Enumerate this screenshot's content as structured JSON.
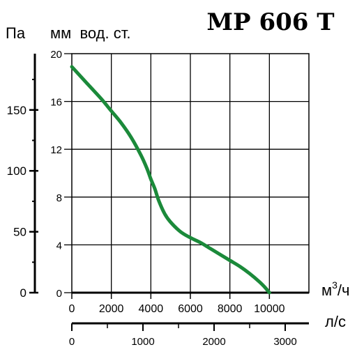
{
  "chart_data": {
    "type": "line",
    "title": "MP 606 T",
    "left_axis_label": "Па",
    "ylabel": "мм  вод. ст.",
    "xlabel": "м³/ч",
    "xlabel_base": "м",
    "xlabel_sup": "3",
    "xlabel_tail": "/ч",
    "x2label": "л/с",
    "xlim": [
      0,
      12000
    ],
    "ylim": [
      0,
      20
    ],
    "x_ticks": [
      "0",
      "2000",
      "4000",
      "6000",
      "8000",
      "10000"
    ],
    "y_ticks": [
      "0",
      "4",
      "8",
      "12",
      "16",
      "20"
    ],
    "left_ticks": [
      "0",
      "50",
      "100",
      "150"
    ],
    "left_tick_values": [
      0,
      50,
      100,
      150
    ],
    "x2_ticks": [
      "0",
      "1000",
      "2000",
      "3000"
    ],
    "x2_tick_values": [
      0,
      1000,
      2000,
      3000
    ],
    "grid": true,
    "series_color": "#1b8a3a",
    "series": [
      {
        "x": [
          0,
          500,
          1000,
          1500,
          2000,
          2500,
          3000,
          3500,
          3800,
          4000,
          4200,
          4400,
          4700,
          5000,
          5500,
          6000,
          6500,
          7000,
          7500,
          8000,
          8500,
          9000,
          9500,
          9800,
          10000
        ],
        "y": [
          18.9,
          18.0,
          17.1,
          16.2,
          15.2,
          14.2,
          13.0,
          11.5,
          10.4,
          9.5,
          8.7,
          7.7,
          6.6,
          5.9,
          5.1,
          4.6,
          4.2,
          3.7,
          3.2,
          2.7,
          2.2,
          1.6,
          0.9,
          0.4,
          0.0
        ]
      }
    ]
  }
}
